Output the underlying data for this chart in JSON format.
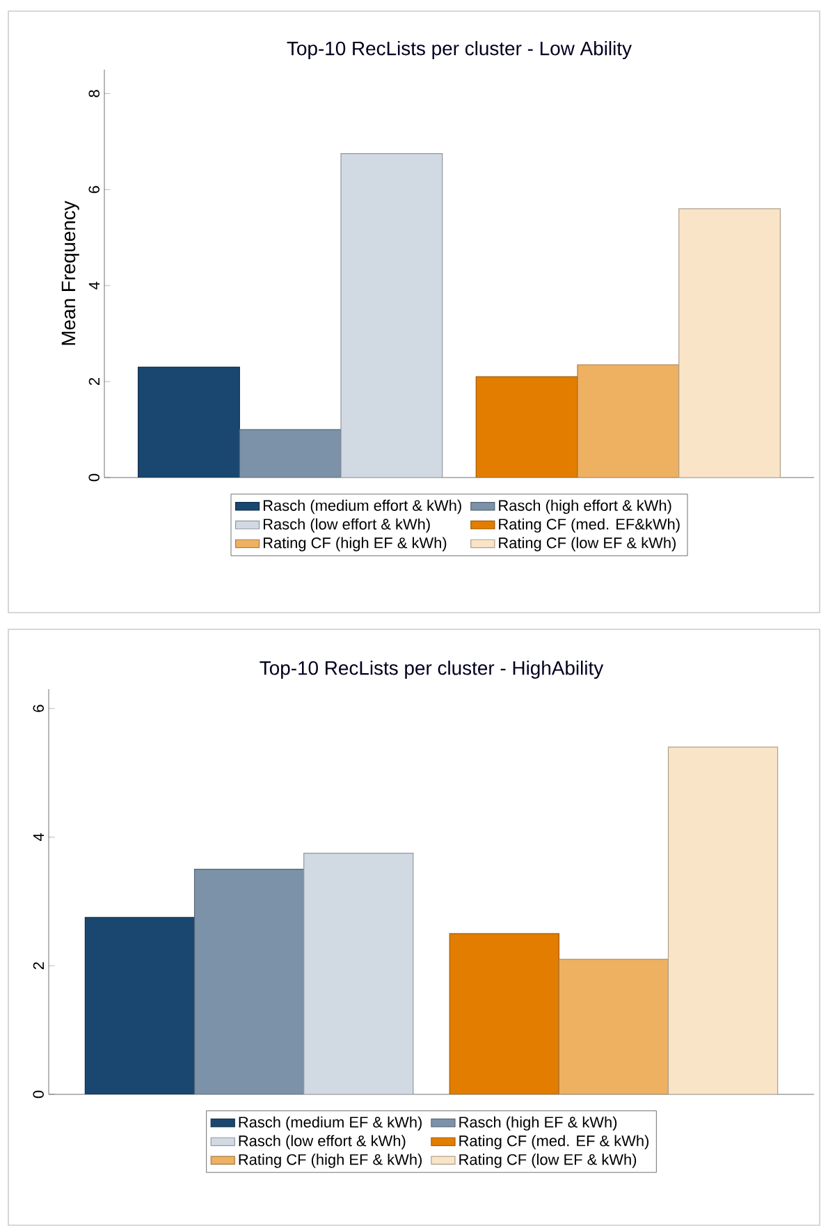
{
  "chart_data": [
    {
      "type": "bar",
      "title": "Top-10 RecLists per cluster - Low Ability",
      "ylabel": "Mean Frequency",
      "categories": [
        null,
        null
      ],
      "ylim": [
        0,
        8.5
      ],
      "yticks": [
        0,
        2,
        4,
        6,
        8
      ],
      "legend": "bottom",
      "series": [
        {
          "name": "Rasch (medium effort & kWh)",
          "color": "#1a476f",
          "values": [
            2.3,
            null
          ]
        },
        {
          "name": "Rasch (high effort & kWh)",
          "color": "#7b92a8",
          "values": [
            1.0,
            null
          ]
        },
        {
          "name": "Rasch (low effort & kWh)",
          "color": "#d1d9e3",
          "values": [
            6.75,
            null
          ]
        },
        {
          "name": "Rating CF (med. EF&kWh)",
          "color": "#e37d00",
          "values": [
            null,
            2.1
          ]
        },
        {
          "name": "Rating CF (high EF & kWh)",
          "color": "#eeb162",
          "values": [
            null,
            2.35
          ]
        },
        {
          "name": "Rating CF (low EF & kWh)",
          "color": "#fae4c7",
          "values": [
            null,
            5.6
          ]
        }
      ]
    },
    {
      "type": "bar",
      "title": "Top-10 RecLists per cluster - HighAbility",
      "categories": [
        null,
        null
      ],
      "ylim": [
        0,
        6.3
      ],
      "yticks": [
        0,
        2,
        4,
        6
      ],
      "legend": "bottom",
      "series": [
        {
          "name": "Rasch (medium EF & kWh)",
          "color": "#1a476f",
          "values": [
            2.75,
            null
          ]
        },
        {
          "name": "Rasch (high EF & kWh)",
          "color": "#7b92a8",
          "values": [
            3.5,
            null
          ]
        },
        {
          "name": "Rasch (low effort & kWh)",
          "color": "#d1d9e3",
          "values": [
            3.75,
            null
          ]
        },
        {
          "name": "Rating CF (med. EF & kWh)",
          "color": "#e37d00",
          "values": [
            null,
            2.5
          ]
        },
        {
          "name": "Rating CF (high EF & kWh)",
          "color": "#eeb162",
          "values": [
            null,
            2.1
          ]
        },
        {
          "name": "Rating CF (low EF & kWh)",
          "color": "#fae4c7",
          "values": [
            null,
            5.4
          ]
        }
      ]
    }
  ]
}
